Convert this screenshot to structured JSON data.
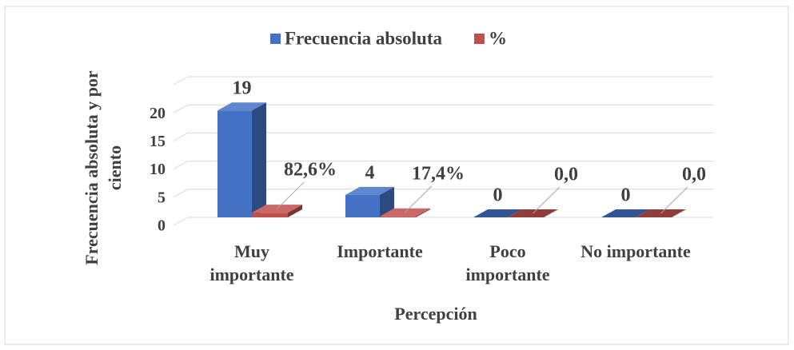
{
  "chart_data": {
    "type": "bar3d",
    "xlabel": "Percepción",
    "ylabel": "Frecuencia absoluta y por ciento",
    "categories": [
      "Muy importante",
      "Importante",
      "Poco importante",
      "No importante"
    ],
    "series": [
      {
        "name": "Frecuencia absoluta",
        "color": "#4472c4",
        "values": [
          19,
          4,
          0,
          0
        ]
      },
      {
        "name": "%",
        "color": "#c0504d",
        "values": [
          0.826,
          0.174,
          0,
          0
        ],
        "value_labels": [
          "82,6%",
          "17,4%",
          "0,0",
          "0,0"
        ]
      }
    ],
    "ylim": [
      0,
      25
    ],
    "yticks": [
      0,
      5,
      10,
      15,
      20
    ],
    "grid": true,
    "legend": "top"
  }
}
